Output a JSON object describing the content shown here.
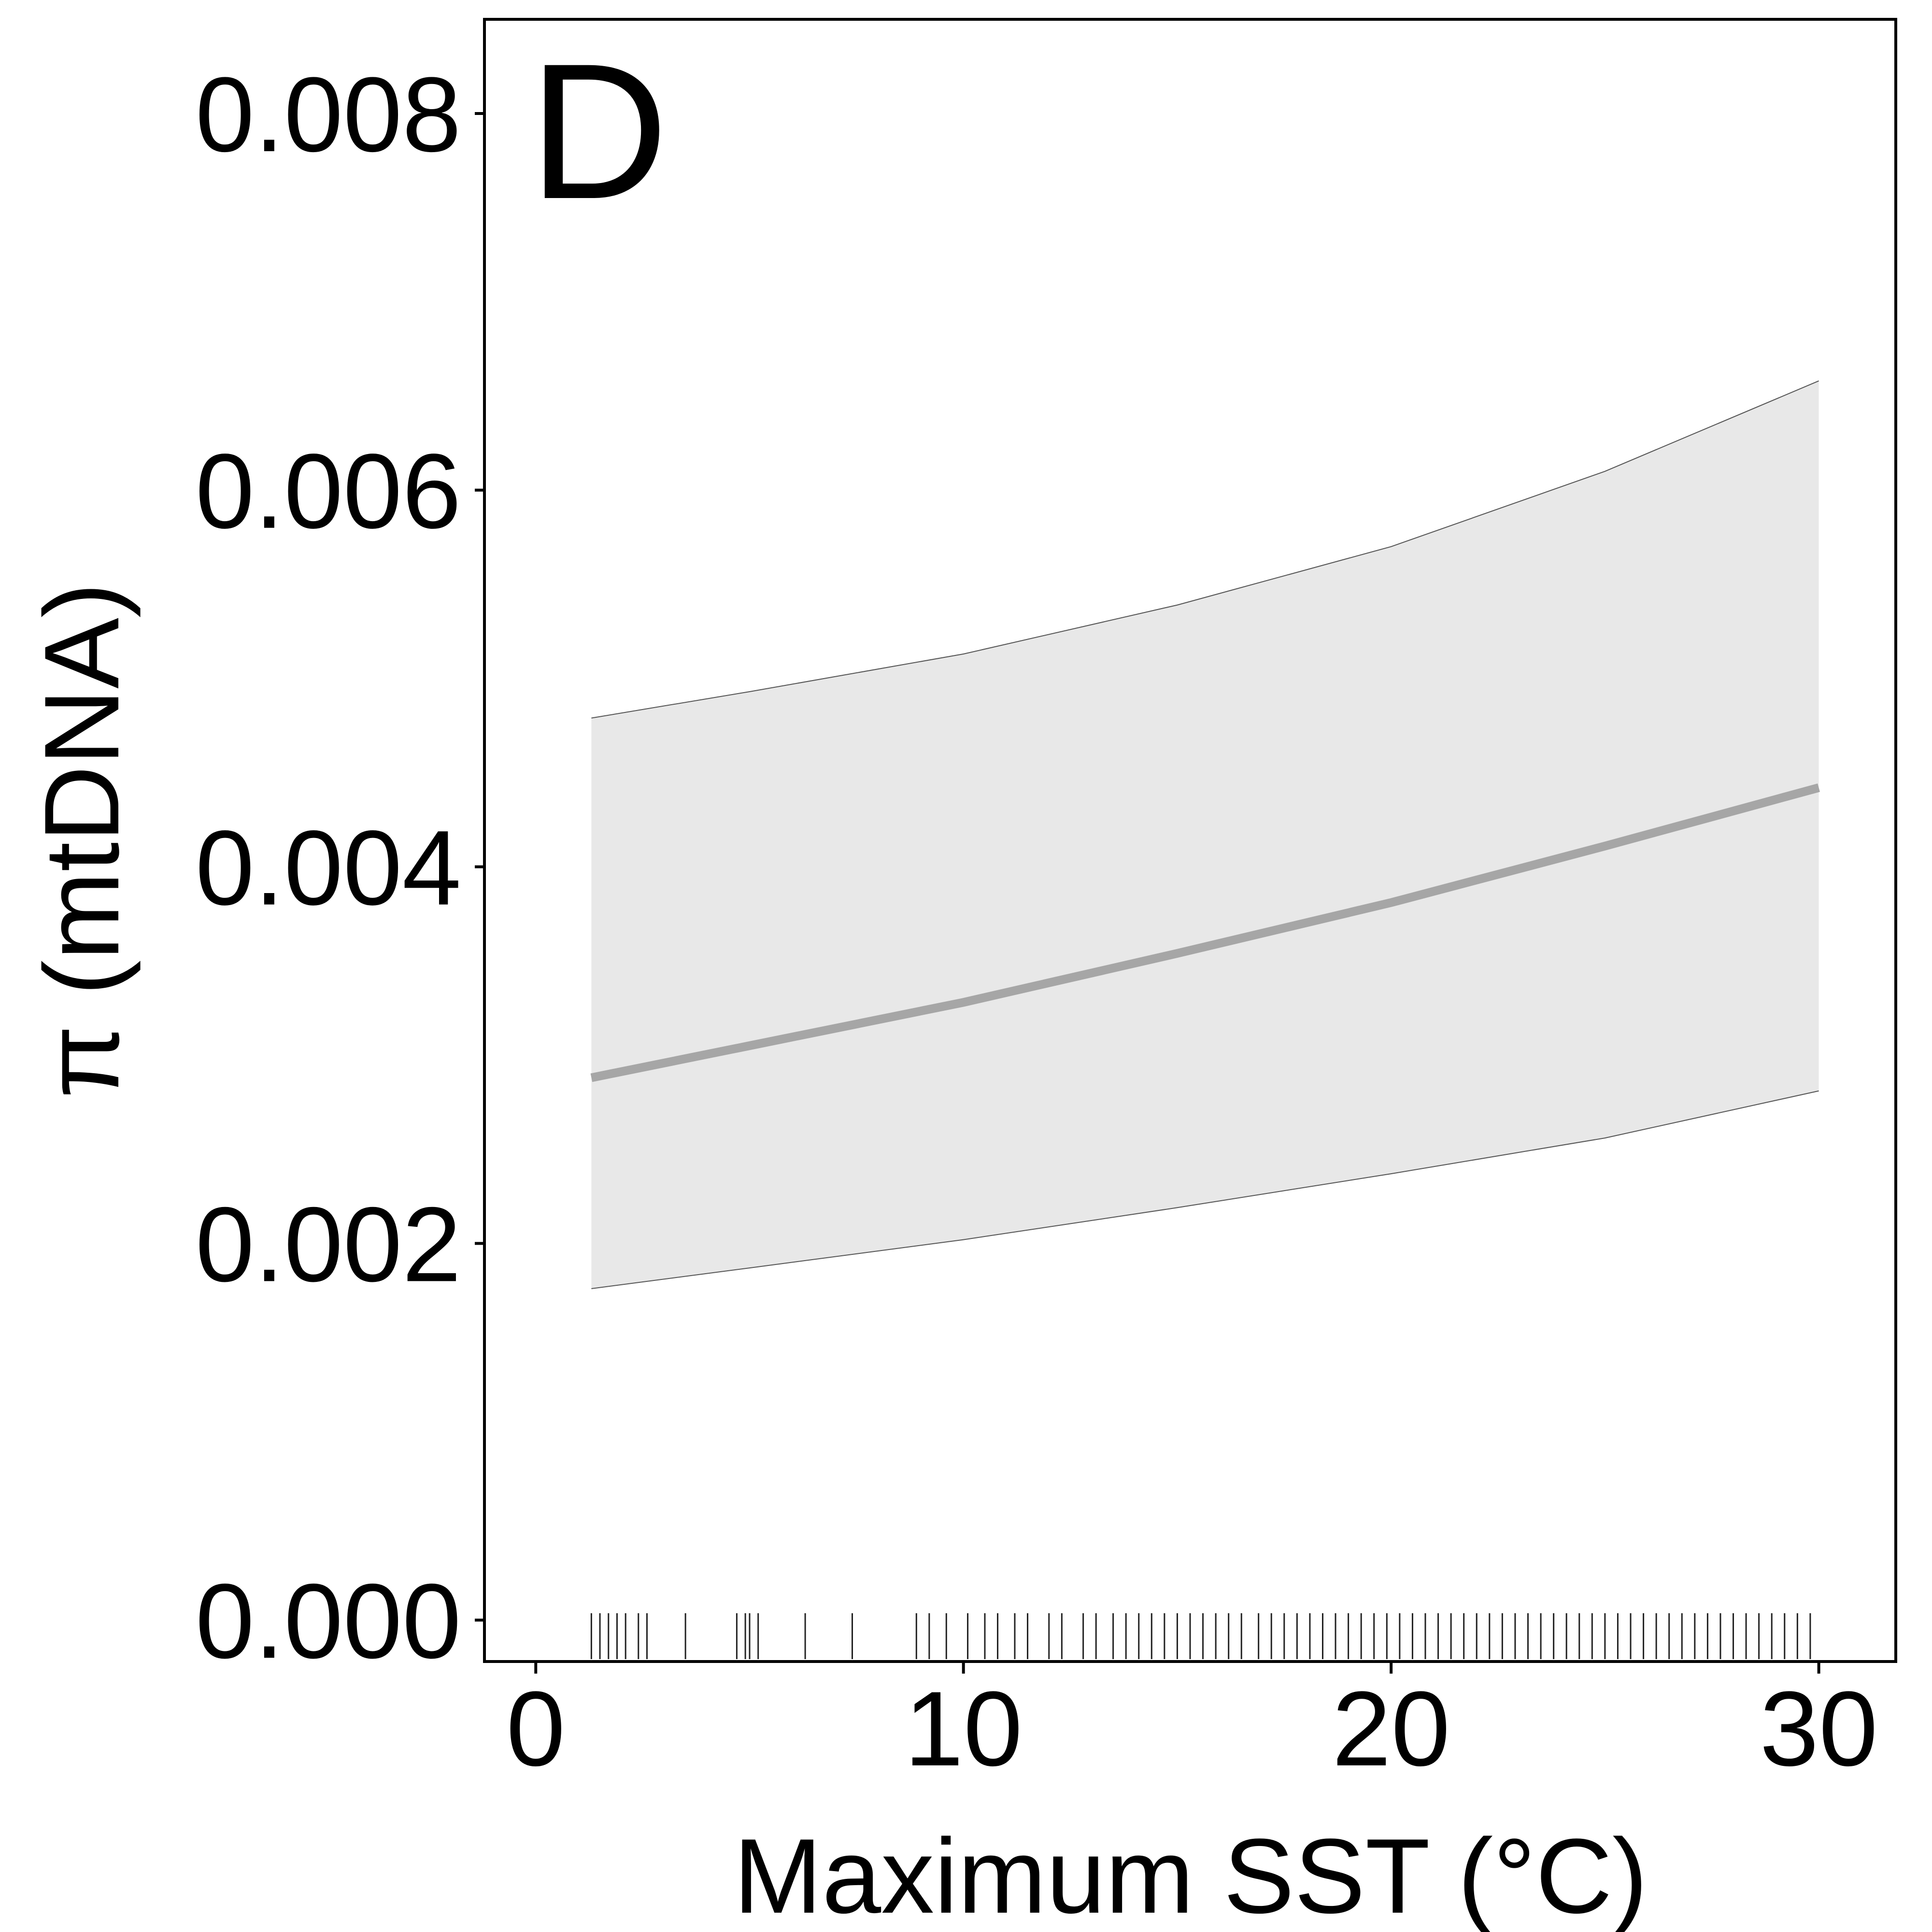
{
  "chart_data": {
    "type": "line",
    "panel_label": "D",
    "title": "",
    "xlabel": "Maximum SST (°C)",
    "ylabel": "π (mtDNA)",
    "xlim": [
      -1.2,
      31.8
    ],
    "ylim": [
      -0.00022,
      0.0085
    ],
    "x_ticks": [
      0,
      10,
      20,
      30
    ],
    "x_tick_labels": [
      "0",
      "10",
      "20",
      "30"
    ],
    "y_ticks": [
      0.0,
      0.002,
      0.004,
      0.006,
      0.008
    ],
    "y_tick_labels": [
      "0.000",
      "0.002",
      "0.004",
      "0.006",
      "0.008"
    ],
    "grid": false,
    "series": [
      {
        "x": [
          1.3,
          5,
          10,
          15,
          20,
          25,
          30
        ],
        "y": [
          0.00288,
          0.00305,
          0.00328,
          0.00354,
          0.00381,
          0.00411,
          0.00442
        ],
        "ci_lower": [
          0.00176,
          0.00187,
          0.00202,
          0.00219,
          0.00237,
          0.00256,
          0.00281
        ],
        "ci_upper": [
          0.00479,
          0.00493,
          0.00513,
          0.00539,
          0.0057,
          0.0061,
          0.00658
        ]
      }
    ],
    "rug_x": [
      1.3,
      1.5,
      1.7,
      1.9,
      2.1,
      2.4,
      2.6,
      3.5,
      4.7,
      4.9,
      5.0,
      5.2,
      6.3,
      7.4,
      8.9,
      9.2,
      9.6,
      10.1,
      10.5,
      10.8,
      11.2,
      11.5,
      12.0,
      12.3,
      12.8,
      13.1,
      13.5,
      13.8,
      14.1,
      14.4,
      14.7,
      15.0,
      15.3,
      15.6,
      15.9,
      16.2,
      16.5,
      16.9,
      17.2,
      17.5,
      17.8,
      18.1,
      18.4,
      18.7,
      19.0,
      19.3,
      19.6,
      19.9,
      20.2,
      20.5,
      20.8,
      21.1,
      21.4,
      21.7,
      22.0,
      22.3,
      22.6,
      22.9,
      23.2,
      23.5,
      23.8,
      24.1,
      24.4,
      24.7,
      25.0,
      25.3,
      25.6,
      25.9,
      26.2,
      26.5,
      26.8,
      27.1,
      27.4,
      27.7,
      28.0,
      28.3,
      28.6,
      28.9,
      29.2,
      29.5,
      29.8
    ],
    "colors": {
      "ribbon": "#e8e8e8",
      "ribbon_edge": "#555555",
      "line": "#a6a6a6",
      "rug": "#222222",
      "axis": "#000000"
    }
  }
}
